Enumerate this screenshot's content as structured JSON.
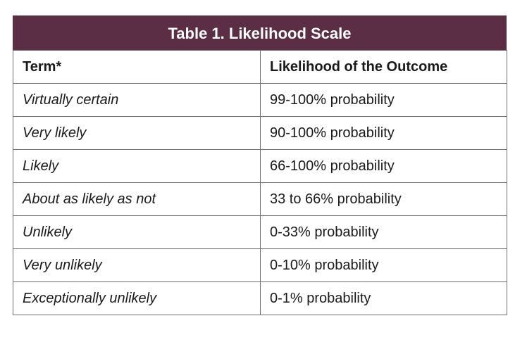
{
  "title": "Table 1. Likelihood Scale",
  "table": {
    "columns": [
      "Term*",
      "Likelihood of the Outcome"
    ],
    "rows": [
      [
        "Virtually certain",
        "99-100% probability"
      ],
      [
        "Very likely",
        "90-100% probability"
      ],
      [
        "Likely",
        "66-100% probability"
      ],
      [
        "About as likely as not",
        "33 to 66% probability"
      ],
      [
        "Unlikely",
        "0-33% probability"
      ],
      [
        "Very unlikely",
        "0-10% probability"
      ],
      [
        "Exceptionally unlikely",
        "0-1% probability"
      ]
    ]
  }
}
